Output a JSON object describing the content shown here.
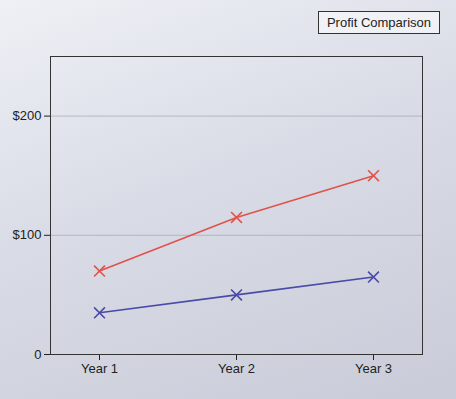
{
  "chart_data": {
    "type": "line",
    "title": "Profit Comparison",
    "categories": [
      "Year 1",
      "Year 2",
      "Year 3"
    ],
    "series": [
      {
        "color": "#e0524a",
        "values": [
          70,
          115,
          150
        ],
        "marker": "x"
      },
      {
        "color": "#4a4aa8",
        "values": [
          35,
          50,
          65
        ],
        "marker": "x"
      }
    ],
    "ylim": [
      0,
      250
    ],
    "yticks": [
      0,
      {
        "value": 100,
        "label": "$100"
      },
      {
        "value": 200,
        "label": "$200"
      }
    ],
    "grid": true
  }
}
